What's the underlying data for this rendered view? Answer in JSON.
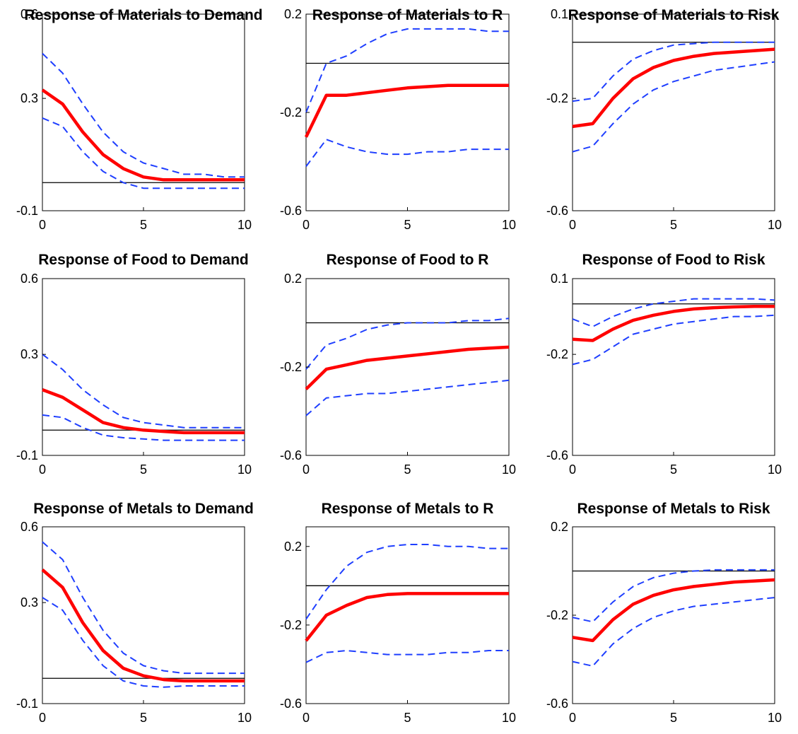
{
  "figure": {
    "colors": {
      "response": "#ff0000",
      "bands": "#1f3fff",
      "zero_line": "#000000",
      "axes": "#000000"
    },
    "legend": "none",
    "grid": false
  },
  "chart_data": [
    {
      "type": "line",
      "title": "Response of Materials to Demand",
      "x": [
        0,
        1,
        2,
        3,
        4,
        5,
        6,
        7,
        8,
        9,
        10
      ],
      "xlim": [
        0,
        10
      ],
      "xticks": [
        "0",
        "5",
        "10"
      ],
      "ylim": [
        -0.1,
        0.6
      ],
      "yticks": [
        "-0.1",
        "0.3",
        "0.6"
      ],
      "zero_line": 0,
      "series": [
        {
          "role": "response",
          "values": [
            0.33,
            0.28,
            0.18,
            0.1,
            0.05,
            0.02,
            0.01,
            0.01,
            0.01,
            0.01,
            0.01
          ]
        },
        {
          "role": "upper",
          "values": [
            0.46,
            0.39,
            0.28,
            0.18,
            0.11,
            0.07,
            0.05,
            0.03,
            0.03,
            0.02,
            0.02
          ]
        },
        {
          "role": "lower",
          "values": [
            0.23,
            0.2,
            0.11,
            0.04,
            0.0,
            -0.02,
            -0.02,
            -0.02,
            -0.02,
            -0.02,
            -0.02
          ]
        }
      ]
    },
    {
      "type": "line",
      "title": "Response of Materials to R",
      "x": [
        0,
        1,
        2,
        3,
        4,
        5,
        6,
        7,
        8,
        9,
        10
      ],
      "xlim": [
        0,
        10
      ],
      "xticks": [
        "0",
        "5",
        "10"
      ],
      "ylim": [
        -0.6,
        0.2
      ],
      "yticks": [
        "-0.6",
        "-0.2",
        "0.2"
      ],
      "zero_line": 0,
      "series": [
        {
          "role": "response",
          "values": [
            -0.3,
            -0.13,
            -0.13,
            -0.12,
            -0.11,
            -0.1,
            -0.095,
            -0.09,
            -0.09,
            -0.09,
            -0.09
          ]
        },
        {
          "role": "upper",
          "values": [
            -0.2,
            0.0,
            0.03,
            0.08,
            0.12,
            0.14,
            0.14,
            0.14,
            0.14,
            0.13,
            0.13
          ]
        },
        {
          "role": "lower",
          "values": [
            -0.42,
            -0.31,
            -0.34,
            -0.36,
            -0.37,
            -0.37,
            -0.36,
            -0.36,
            -0.35,
            -0.35,
            -0.35
          ]
        }
      ]
    },
    {
      "type": "line",
      "title": "Response of Materials to Risk",
      "x": [
        0,
        1,
        2,
        3,
        4,
        5,
        6,
        7,
        8,
        9,
        10
      ],
      "xlim": [
        0,
        10
      ],
      "xticks": [
        "0",
        "5",
        "10"
      ],
      "ylim": [
        -0.6,
        0.1
      ],
      "yticks": [
        "-0.6",
        "-0.2",
        "0.1"
      ],
      "zero_line": 0,
      "series": [
        {
          "role": "response",
          "values": [
            -0.3,
            -0.29,
            -0.2,
            -0.13,
            -0.09,
            -0.065,
            -0.05,
            -0.04,
            -0.035,
            -0.03,
            -0.025
          ]
        },
        {
          "role": "upper",
          "values": [
            -0.21,
            -0.2,
            -0.12,
            -0.06,
            -0.03,
            -0.01,
            -0.005,
            0.0,
            0.0,
            0.0,
            0.0
          ]
        },
        {
          "role": "lower",
          "values": [
            -0.39,
            -0.37,
            -0.29,
            -0.22,
            -0.17,
            -0.14,
            -0.12,
            -0.1,
            -0.09,
            -0.08,
            -0.07
          ]
        }
      ]
    },
    {
      "type": "line",
      "title": "Response of Food to Demand",
      "x": [
        0,
        1,
        2,
        3,
        4,
        5,
        6,
        7,
        8,
        9,
        10
      ],
      "xlim": [
        0,
        10
      ],
      "xticks": [
        "0",
        "5",
        "10"
      ],
      "ylim": [
        -0.1,
        0.6
      ],
      "yticks": [
        "-0.1",
        "0.3",
        "0.6"
      ],
      "zero_line": 0,
      "series": [
        {
          "role": "response",
          "values": [
            0.16,
            0.13,
            0.08,
            0.03,
            0.01,
            0.0,
            -0.005,
            -0.01,
            -0.01,
            -0.01,
            -0.01
          ]
        },
        {
          "role": "upper",
          "values": [
            0.3,
            0.24,
            0.16,
            0.1,
            0.05,
            0.03,
            0.02,
            0.01,
            0.01,
            0.01,
            0.01
          ]
        },
        {
          "role": "lower",
          "values": [
            0.06,
            0.05,
            0.01,
            -0.02,
            -0.03,
            -0.035,
            -0.04,
            -0.04,
            -0.04,
            -0.04,
            -0.04
          ]
        }
      ]
    },
    {
      "type": "line",
      "title": "Response of Food to R",
      "x": [
        0,
        1,
        2,
        3,
        4,
        5,
        6,
        7,
        8,
        9,
        10
      ],
      "xlim": [
        0,
        10
      ],
      "xticks": [
        "0",
        "5",
        "10"
      ],
      "ylim": [
        -0.6,
        0.2
      ],
      "yticks": [
        "-0.6",
        "-0.2",
        "0.2"
      ],
      "zero_line": 0,
      "series": [
        {
          "role": "response",
          "values": [
            -0.3,
            -0.21,
            -0.19,
            -0.17,
            -0.16,
            -0.15,
            -0.14,
            -0.13,
            -0.12,
            -0.115,
            -0.11
          ]
        },
        {
          "role": "upper",
          "values": [
            -0.21,
            -0.1,
            -0.07,
            -0.03,
            -0.01,
            0.0,
            0.0,
            0.0,
            0.01,
            0.01,
            0.02
          ]
        },
        {
          "role": "lower",
          "values": [
            -0.42,
            -0.34,
            -0.33,
            -0.32,
            -0.32,
            -0.31,
            -0.3,
            -0.29,
            -0.28,
            -0.27,
            -0.26
          ]
        }
      ]
    },
    {
      "type": "line",
      "title": "Response of Food to Risk",
      "x": [
        0,
        1,
        2,
        3,
        4,
        5,
        6,
        7,
        8,
        9,
        10
      ],
      "xlim": [
        0,
        10
      ],
      "xticks": [
        "0",
        "5",
        "10"
      ],
      "ylim": [
        -0.6,
        0.1
      ],
      "yticks": [
        "-0.6",
        "-0.2",
        "0.1"
      ],
      "zero_line": 0,
      "series": [
        {
          "role": "response",
          "values": [
            -0.14,
            -0.145,
            -0.1,
            -0.065,
            -0.045,
            -0.03,
            -0.02,
            -0.015,
            -0.012,
            -0.01,
            -0.01
          ]
        },
        {
          "role": "upper",
          "values": [
            -0.06,
            -0.09,
            -0.05,
            -0.02,
            0.0,
            0.01,
            0.02,
            0.02,
            0.02,
            0.02,
            0.015
          ]
        },
        {
          "role": "lower",
          "values": [
            -0.24,
            -0.22,
            -0.17,
            -0.12,
            -0.1,
            -0.08,
            -0.07,
            -0.06,
            -0.05,
            -0.05,
            -0.045
          ]
        }
      ]
    },
    {
      "type": "line",
      "title": "Response of Metals to Demand",
      "x": [
        0,
        1,
        2,
        3,
        4,
        5,
        6,
        7,
        8,
        9,
        10
      ],
      "xlim": [
        0,
        10
      ],
      "xticks": [
        "0",
        "5",
        "10"
      ],
      "ylim": [
        -0.1,
        0.6
      ],
      "yticks": [
        "-0.1",
        "0.3",
        "0.6"
      ],
      "zero_line": 0,
      "series": [
        {
          "role": "response",
          "values": [
            0.43,
            0.36,
            0.22,
            0.11,
            0.04,
            0.01,
            -0.005,
            -0.01,
            -0.01,
            -0.01,
            -0.01
          ]
        },
        {
          "role": "upper",
          "values": [
            0.54,
            0.47,
            0.32,
            0.19,
            0.1,
            0.05,
            0.03,
            0.02,
            0.02,
            0.02,
            0.02
          ]
        },
        {
          "role": "lower",
          "values": [
            0.32,
            0.27,
            0.15,
            0.05,
            -0.01,
            -0.03,
            -0.035,
            -0.03,
            -0.03,
            -0.03,
            -0.03
          ]
        }
      ]
    },
    {
      "type": "line",
      "title": "Response of Metals to R",
      "x": [
        0,
        1,
        2,
        3,
        4,
        5,
        6,
        7,
        8,
        9,
        10
      ],
      "xlim": [
        0,
        10
      ],
      "xticks": [
        "0",
        "5",
        "10"
      ],
      "ylim": [
        -0.6,
        0.3
      ],
      "yticks": [
        "-0.6",
        "-0.2",
        "0.2"
      ],
      "zero_line": 0,
      "series": [
        {
          "role": "response",
          "values": [
            -0.28,
            -0.15,
            -0.1,
            -0.06,
            -0.045,
            -0.04,
            -0.04,
            -0.04,
            -0.04,
            -0.04,
            -0.04
          ]
        },
        {
          "role": "upper",
          "values": [
            -0.17,
            -0.02,
            0.1,
            0.17,
            0.2,
            0.21,
            0.21,
            0.2,
            0.2,
            0.19,
            0.19
          ]
        },
        {
          "role": "lower",
          "values": [
            -0.39,
            -0.34,
            -0.33,
            -0.34,
            -0.35,
            -0.35,
            -0.35,
            -0.34,
            -0.34,
            -0.33,
            -0.33
          ]
        }
      ]
    },
    {
      "type": "line",
      "title": "Response of Metals to Risk",
      "x": [
        0,
        1,
        2,
        3,
        4,
        5,
        6,
        7,
        8,
        9,
        10
      ],
      "xlim": [
        0,
        10
      ],
      "xticks": [
        "0",
        "5",
        "10"
      ],
      "ylim": [
        -0.6,
        0.2
      ],
      "yticks": [
        "-0.6",
        "-0.2",
        "0.2"
      ],
      "zero_line": 0,
      "series": [
        {
          "role": "response",
          "values": [
            -0.3,
            -0.315,
            -0.22,
            -0.15,
            -0.11,
            -0.085,
            -0.07,
            -0.06,
            -0.05,
            -0.045,
            -0.04
          ]
        },
        {
          "role": "upper",
          "values": [
            -0.21,
            -0.23,
            -0.14,
            -0.07,
            -0.03,
            -0.01,
            0.0,
            0.005,
            0.005,
            0.005,
            0.005
          ]
        },
        {
          "role": "lower",
          "values": [
            -0.41,
            -0.43,
            -0.33,
            -0.26,
            -0.21,
            -0.18,
            -0.16,
            -0.15,
            -0.14,
            -0.13,
            -0.12
          ]
        }
      ]
    }
  ]
}
